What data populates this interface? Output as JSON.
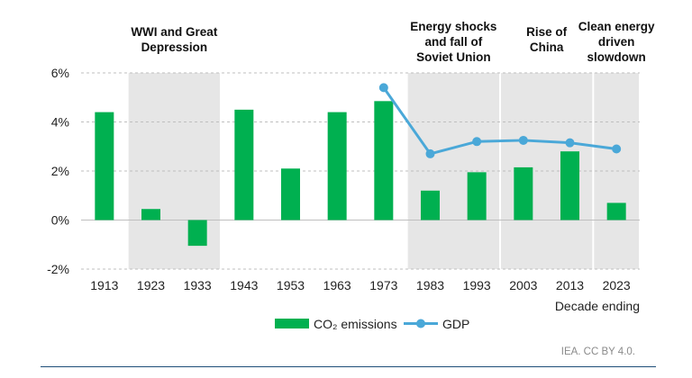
{
  "chart_data": {
    "type": "bar",
    "categories": [
      "1913",
      "1923",
      "1933",
      "1943",
      "1953",
      "1963",
      "1973",
      "1983",
      "1993",
      "2003",
      "2013",
      "2023"
    ],
    "series": [
      {
        "name": "CO₂ emissions",
        "kind": "bar",
        "color": "#00b050",
        "values": [
          4.4,
          0.45,
          -1.05,
          4.5,
          2.1,
          4.4,
          4.85,
          1.2,
          1.95,
          2.15,
          2.8,
          0.7
        ]
      },
      {
        "name": "GDP",
        "kind": "line",
        "color": "#4aa8d8",
        "values": [
          null,
          null,
          null,
          null,
          null,
          null,
          5.4,
          2.7,
          3.2,
          3.25,
          3.15,
          2.9
        ]
      }
    ],
    "ylim": [
      -2,
      6
    ],
    "yticks": [
      -2,
      0,
      2,
      4,
      6
    ],
    "ytick_labels": [
      "-2%",
      "0%",
      "2%",
      "4%",
      "6%"
    ],
    "xlabel": "Decade ending",
    "ylabel": "",
    "grid": "horizontal dashed",
    "legend_position": "bottom",
    "shaded_periods": [
      {
        "label": "WWI and Great Depression",
        "lines": [
          "WWI and Great",
          "Depression"
        ],
        "categories": [
          "1923",
          "1933"
        ]
      },
      {
        "label": "Energy shocks and fall of Soviet Union",
        "lines": [
          "Energy shocks",
          "and fall of",
          "Soviet Union"
        ],
        "categories": [
          "1983",
          "1993"
        ]
      },
      {
        "label": "Rise of China",
        "lines": [
          "Rise of",
          "China"
        ],
        "categories": [
          "2003",
          "2013"
        ]
      },
      {
        "label": "Clean energy driven slowdown",
        "lines": [
          "Clean energy",
          "driven",
          "slowdown"
        ],
        "categories": [
          "2023"
        ]
      }
    ],
    "shade_color": "#e6e6e6",
    "grid_color": "#bfbfbf"
  },
  "credit": "IEA. CC BY 4.0.",
  "footer_rule_color": "#1f4e79"
}
